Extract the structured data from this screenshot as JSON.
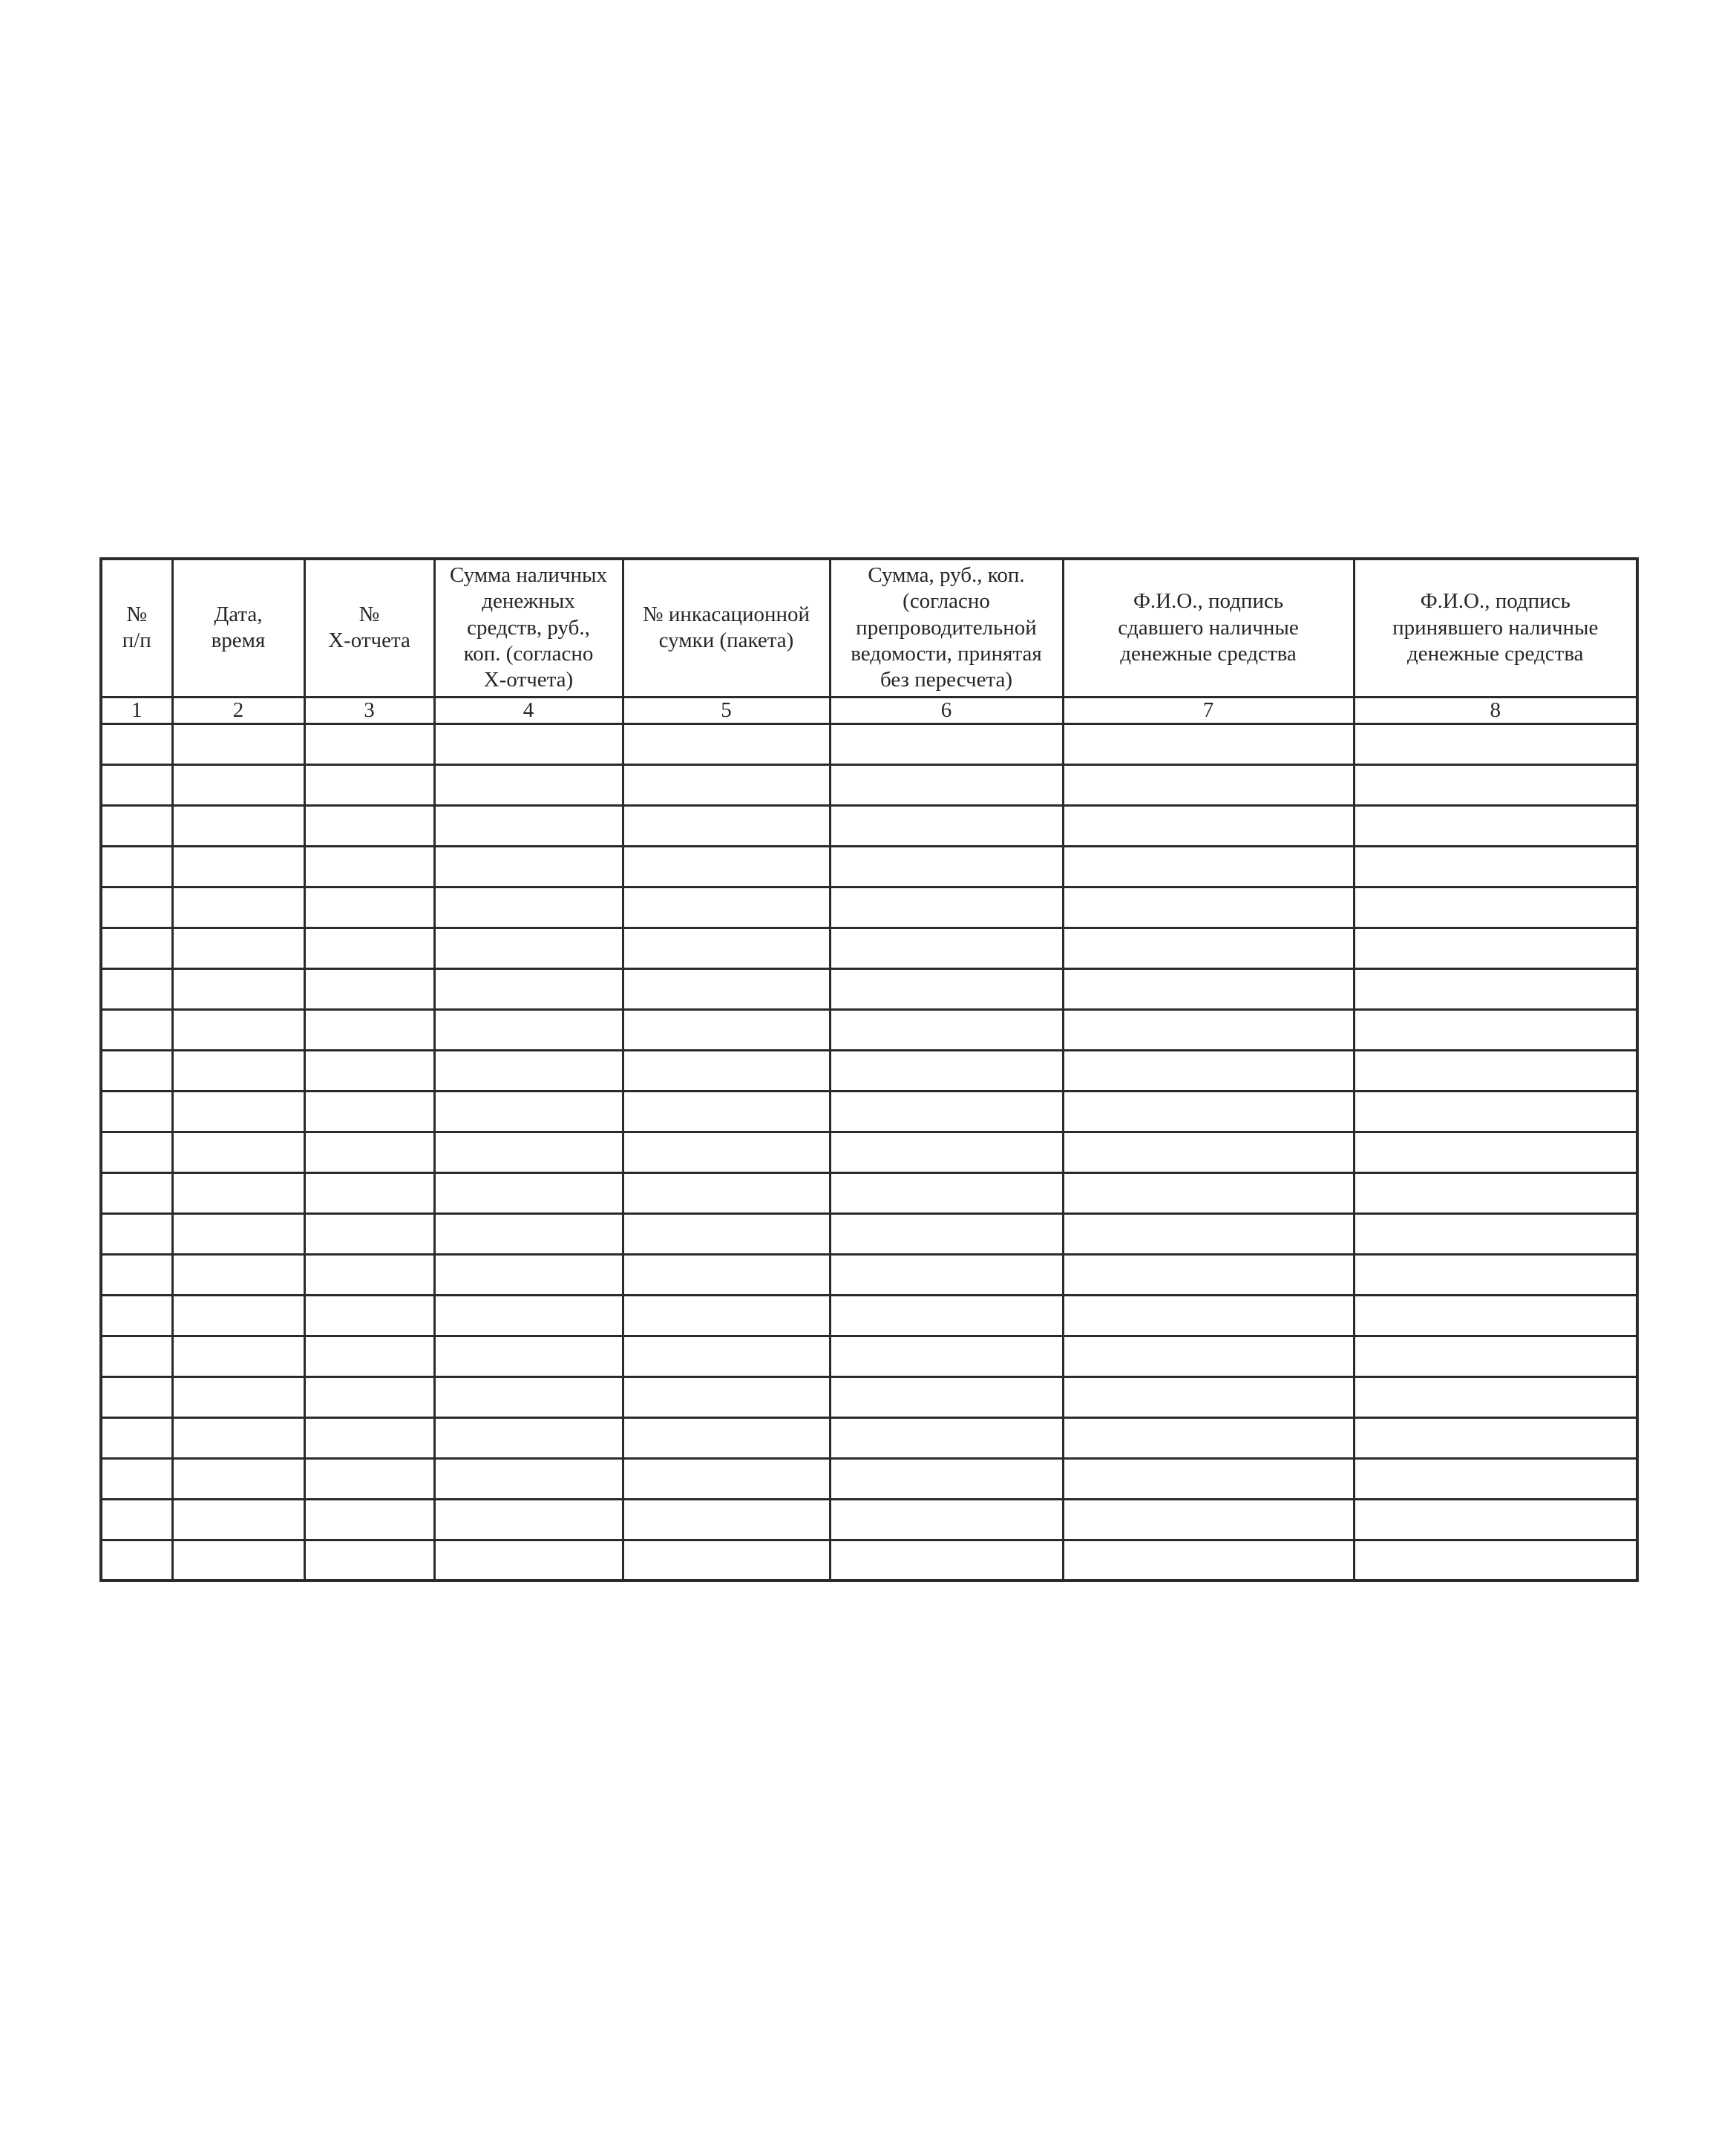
{
  "table": {
    "columns": [
      {
        "index": "1",
        "title": "№\nп/п"
      },
      {
        "index": "2",
        "title": "Дата,\nвремя"
      },
      {
        "index": "3",
        "title": "№\nХ-отчета"
      },
      {
        "index": "4",
        "title": "Сумма наличных\nденежных\nсредств, руб.,\nкоп. (согласно\nХ-отчета)"
      },
      {
        "index": "5",
        "title": "№ инкасационной\nсумки (пакета)"
      },
      {
        "index": "6",
        "title": "Сумма, руб., коп.\n(согласно\nпрепроводительной\nведомости, принятая\nбез пересчета)"
      },
      {
        "index": "7",
        "title": "Ф.И.О., подпись\nсдавшего наличные\nденежные средства"
      },
      {
        "index": "8",
        "title": "Ф.И.О., подпись\nпринявшего наличные\nденежные средства"
      }
    ],
    "empty_row_count": 21,
    "empty_cell_value": "",
    "grid_color": "#2b2b2b"
  }
}
